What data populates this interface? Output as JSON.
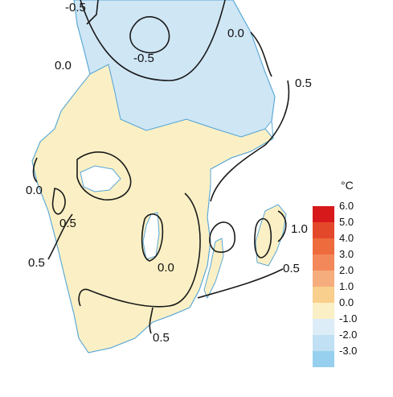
{
  "colors": {
    "water": "#ffffff",
    "land_warm": "#fbf0c5",
    "land_cool": "#cfe6f5",
    "coast": "#5aa8d6",
    "isoline": "#1a1a1a"
  },
  "isoline_labels": [
    {
      "id": "neg05-top",
      "text": "-0.5"
    },
    {
      "id": "neg05-mid",
      "text": "-0.5"
    },
    {
      "id": "zero-ne",
      "text": "0.0"
    },
    {
      "id": "zero-nw",
      "text": "0.0"
    },
    {
      "id": "half-ne",
      "text": "0.5"
    },
    {
      "id": "zero-w",
      "text": "0.0"
    },
    {
      "id": "half-w1",
      "text": "0.5"
    },
    {
      "id": "one-gotland",
      "text": "1.0"
    },
    {
      "id": "half-sw",
      "text": "0.5"
    },
    {
      "id": "zero-c",
      "text": "0.0"
    },
    {
      "id": "half-se",
      "text": "0.5"
    },
    {
      "id": "half-s",
      "text": "0.5"
    }
  ],
  "legend": {
    "unit": "°C",
    "classes": [
      {
        "label": "6.0",
        "color": "#d7191c"
      },
      {
        "label": "5.0",
        "color": "#e4482b"
      },
      {
        "label": "4.0",
        "color": "#ee6b3d"
      },
      {
        "label": "3.0",
        "color": "#f3895a"
      },
      {
        "label": "2.0",
        "color": "#f6ad7e"
      },
      {
        "label": "1.0",
        "color": "#f8cf8c"
      },
      {
        "label": "0.0",
        "color": "#fbf0c5"
      },
      {
        "label": "-1.0",
        "color": "#dcedf8"
      },
      {
        "label": "-2.0",
        "color": "#c1e0f3"
      },
      {
        "label": "-3.0",
        "color": "#97d0ee"
      }
    ]
  }
}
